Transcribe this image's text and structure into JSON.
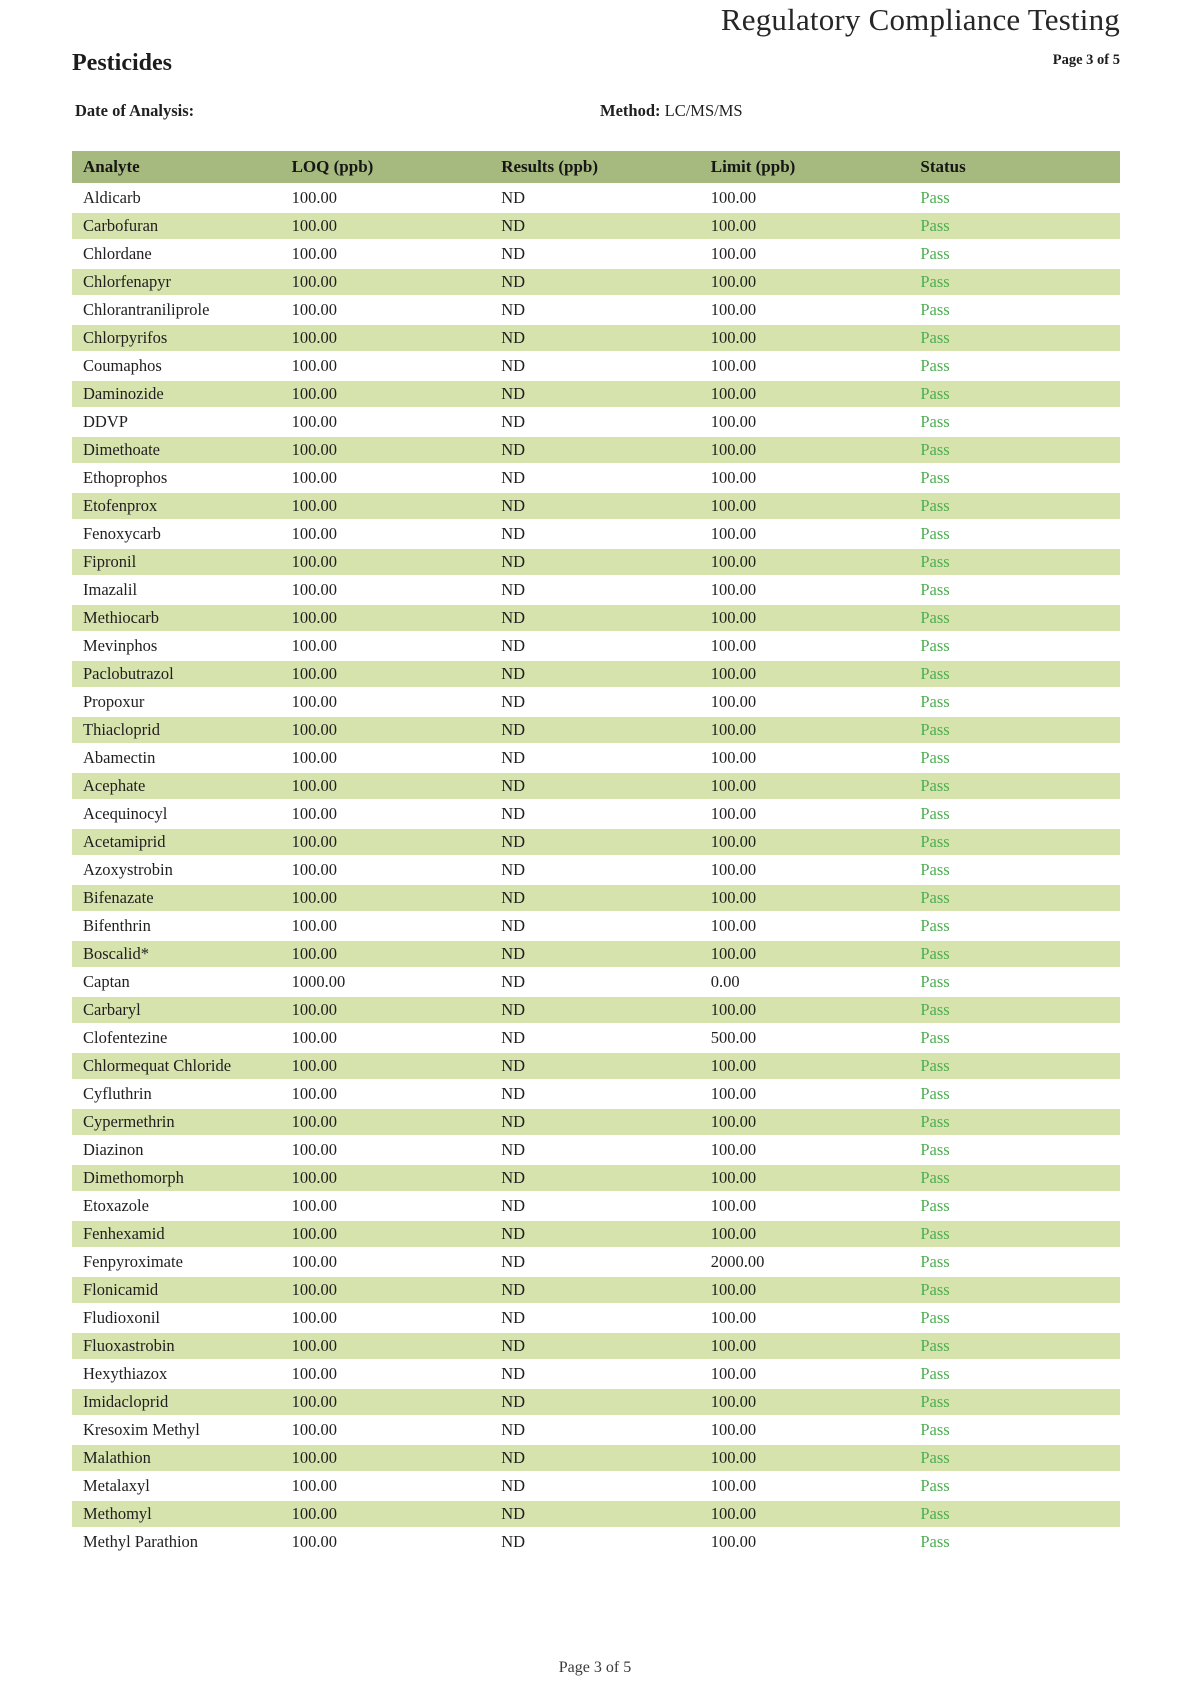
{
  "report": {
    "title": "Regulatory Compliance Testing",
    "section_title": "Pesticides",
    "page_label": "Page 3 of 5",
    "date_of_analysis_label": "Date of Analysis:",
    "method_label": "Method:",
    "method_value": "LC/MS/MS"
  },
  "table": {
    "columns": [
      "Analyte",
      "LOQ (ppb)",
      "Results (ppb)",
      "Limit (ppb)",
      "Status"
    ],
    "rows": [
      {
        "analyte": "Aldicarb",
        "loq": "100.00",
        "results": "ND",
        "limit": "100.00",
        "status": "Pass"
      },
      {
        "analyte": "Carbofuran",
        "loq": "100.00",
        "results": "ND",
        "limit": "100.00",
        "status": "Pass"
      },
      {
        "analyte": "Chlordane",
        "loq": "100.00",
        "results": "ND",
        "limit": "100.00",
        "status": "Pass"
      },
      {
        "analyte": "Chlorfenapyr",
        "loq": "100.00",
        "results": "ND",
        "limit": "100.00",
        "status": "Pass"
      },
      {
        "analyte": "Chlorantraniliprole",
        "loq": "100.00",
        "results": "ND",
        "limit": "100.00",
        "status": "Pass"
      },
      {
        "analyte": "Chlorpyrifos",
        "loq": "100.00",
        "results": "ND",
        "limit": "100.00",
        "status": "Pass"
      },
      {
        "analyte": "Coumaphos",
        "loq": "100.00",
        "results": "ND",
        "limit": "100.00",
        "status": "Pass"
      },
      {
        "analyte": "Daminozide",
        "loq": "100.00",
        "results": "ND",
        "limit": "100.00",
        "status": "Pass"
      },
      {
        "analyte": "DDVP",
        "loq": "100.00",
        "results": "ND",
        "limit": "100.00",
        "status": "Pass"
      },
      {
        "analyte": "Dimethoate",
        "loq": "100.00",
        "results": "ND",
        "limit": "100.00",
        "status": "Pass"
      },
      {
        "analyte": "Ethoprophos",
        "loq": "100.00",
        "results": "ND",
        "limit": "100.00",
        "status": "Pass"
      },
      {
        "analyte": "Etofenprox",
        "loq": "100.00",
        "results": "ND",
        "limit": "100.00",
        "status": "Pass"
      },
      {
        "analyte": "Fenoxycarb",
        "loq": "100.00",
        "results": "ND",
        "limit": "100.00",
        "status": "Pass"
      },
      {
        "analyte": "Fipronil",
        "loq": "100.00",
        "results": "ND",
        "limit": "100.00",
        "status": "Pass"
      },
      {
        "analyte": "Imazalil",
        "loq": "100.00",
        "results": "ND",
        "limit": "100.00",
        "status": "Pass"
      },
      {
        "analyte": "Methiocarb",
        "loq": "100.00",
        "results": "ND",
        "limit": "100.00",
        "status": "Pass"
      },
      {
        "analyte": "Mevinphos",
        "loq": "100.00",
        "results": "ND",
        "limit": "100.00",
        "status": "Pass"
      },
      {
        "analyte": "Paclobutrazol",
        "loq": "100.00",
        "results": "ND",
        "limit": "100.00",
        "status": "Pass"
      },
      {
        "analyte": "Propoxur",
        "loq": "100.00",
        "results": "ND",
        "limit": "100.00",
        "status": "Pass"
      },
      {
        "analyte": "Thiacloprid",
        "loq": "100.00",
        "results": "ND",
        "limit": "100.00",
        "status": "Pass"
      },
      {
        "analyte": "Abamectin",
        "loq": "100.00",
        "results": "ND",
        "limit": "100.00",
        "status": "Pass"
      },
      {
        "analyte": "Acephate",
        "loq": "100.00",
        "results": "ND",
        "limit": "100.00",
        "status": "Pass"
      },
      {
        "analyte": "Acequinocyl",
        "loq": "100.00",
        "results": "ND",
        "limit": "100.00",
        "status": "Pass"
      },
      {
        "analyte": "Acetamiprid",
        "loq": "100.00",
        "results": "ND",
        "limit": "100.00",
        "status": "Pass"
      },
      {
        "analyte": "Azoxystrobin",
        "loq": "100.00",
        "results": "ND",
        "limit": "100.00",
        "status": "Pass"
      },
      {
        "analyte": "Bifenazate",
        "loq": "100.00",
        "results": "ND",
        "limit": "100.00",
        "status": "Pass"
      },
      {
        "analyte": "Bifenthrin",
        "loq": "100.00",
        "results": "ND",
        "limit": "100.00",
        "status": "Pass"
      },
      {
        "analyte": "Boscalid*",
        "loq": "100.00",
        "results": "ND",
        "limit": "100.00",
        "status": "Pass"
      },
      {
        "analyte": "Captan",
        "loq": "1000.00",
        "results": "ND",
        "limit": "0.00",
        "status": "Pass"
      },
      {
        "analyte": "Carbaryl",
        "loq": "100.00",
        "results": "ND",
        "limit": "100.00",
        "status": "Pass"
      },
      {
        "analyte": "Clofentezine",
        "loq": "100.00",
        "results": "ND",
        "limit": "500.00",
        "status": "Pass"
      },
      {
        "analyte": "Chlormequat Chloride",
        "loq": "100.00",
        "results": "ND",
        "limit": "100.00",
        "status": "Pass"
      },
      {
        "analyte": "Cyfluthrin",
        "loq": "100.00",
        "results": "ND",
        "limit": "100.00",
        "status": "Pass"
      },
      {
        "analyte": "Cypermethrin",
        "loq": "100.00",
        "results": "ND",
        "limit": "100.00",
        "status": "Pass"
      },
      {
        "analyte": "Diazinon",
        "loq": "100.00",
        "results": "ND",
        "limit": "100.00",
        "status": "Pass"
      },
      {
        "analyte": "Dimethomorph",
        "loq": "100.00",
        "results": "ND",
        "limit": "100.00",
        "status": "Pass"
      },
      {
        "analyte": "Etoxazole",
        "loq": "100.00",
        "results": "ND",
        "limit": "100.00",
        "status": "Pass"
      },
      {
        "analyte": "Fenhexamid",
        "loq": "100.00",
        "results": "ND",
        "limit": "100.00",
        "status": "Pass"
      },
      {
        "analyte": "Fenpyroximate",
        "loq": "100.00",
        "results": "ND",
        "limit": "2000.00",
        "status": "Pass"
      },
      {
        "analyte": "Flonicamid",
        "loq": "100.00",
        "results": "ND",
        "limit": "100.00",
        "status": "Pass"
      },
      {
        "analyte": "Fludioxonil",
        "loq": "100.00",
        "results": "ND",
        "limit": "100.00",
        "status": "Pass"
      },
      {
        "analyte": "Fluoxastrobin",
        "loq": "100.00",
        "results": "ND",
        "limit": "100.00",
        "status": "Pass"
      },
      {
        "analyte": "Hexythiazox",
        "loq": "100.00",
        "results": "ND",
        "limit": "100.00",
        "status": "Pass"
      },
      {
        "analyte": "Imidacloprid",
        "loq": "100.00",
        "results": "ND",
        "limit": "100.00",
        "status": "Pass"
      },
      {
        "analyte": "Kresoxim Methyl",
        "loq": "100.00",
        "results": "ND",
        "limit": "100.00",
        "status": "Pass"
      },
      {
        "analyte": "Malathion",
        "loq": "100.00",
        "results": "ND",
        "limit": "100.00",
        "status": "Pass"
      },
      {
        "analyte": "Metalaxyl",
        "loq": "100.00",
        "results": "ND",
        "limit": "100.00",
        "status": "Pass"
      },
      {
        "analyte": "Methomyl",
        "loq": "100.00",
        "results": "ND",
        "limit": "100.00",
        "status": "Pass"
      },
      {
        "analyte": "Methyl Parathion",
        "loq": "100.00",
        "results": "ND",
        "limit": "100.00",
        "status": "Pass"
      }
    ]
  },
  "footer": {
    "page_label": "Page 3 of 5"
  },
  "colors": {
    "header_bg": "#a6b97e",
    "stripe_bg": "#d7e3ad",
    "pass_green": "#4cae51",
    "text": "#1f1f1f"
  }
}
